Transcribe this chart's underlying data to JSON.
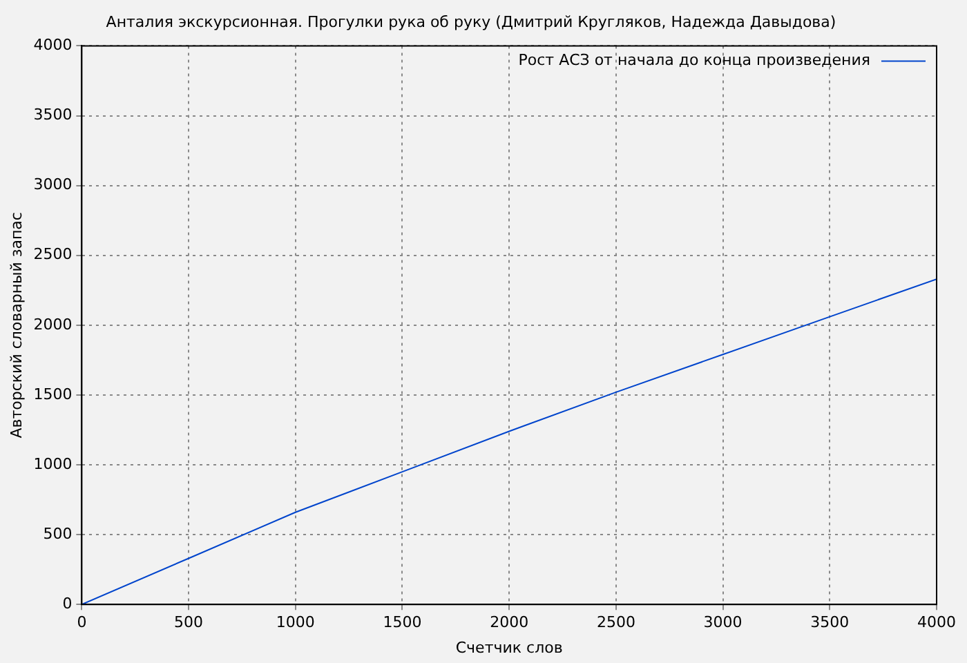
{
  "chart_data": {
    "type": "line",
    "title": "Анталия экскурсионная. Прогулки рука об руку (Дмитрий Кругляков, Надежда Давыдова)",
    "xlabel": "Счетчик слов",
    "ylabel": "Авторский словарный запас",
    "x": [
      0,
      500,
      1000,
      1500,
      2000,
      2500,
      3000,
      3500,
      4000
    ],
    "series": [
      {
        "name": "Рост АСЗ от начала до конца произведения",
        "color": "#0044cc",
        "values": [
          0,
          330,
          660,
          950,
          1240,
          1520,
          1790,
          2060,
          2330
        ]
      }
    ],
    "xlim": [
      0,
      4000
    ],
    "xticks": [
      0,
      500,
      1000,
      1500,
      2000,
      2500,
      3000,
      3500,
      4000
    ],
    "ylim": [
      0,
      4000
    ],
    "yticks": [
      0,
      500,
      1000,
      1500,
      2000,
      2500,
      3000,
      3500,
      4000
    ],
    "grid": true,
    "legend": "top right",
    "marker": "none",
    "line_style": "solid"
  }
}
